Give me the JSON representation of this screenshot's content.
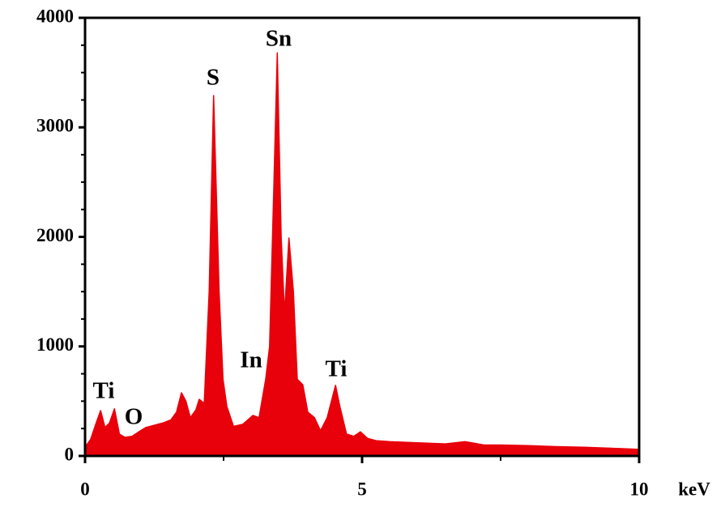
{
  "chart_data": {
    "type": "area",
    "x_label": "keV",
    "x": [
      0,
      0.1,
      0.2,
      0.28,
      0.36,
      0.44,
      0.53,
      0.62,
      0.72,
      0.85,
      1.0,
      1.1,
      1.25,
      1.4,
      1.55,
      1.65,
      1.74,
      1.82,
      1.9,
      2.0,
      2.06,
      2.15,
      2.24,
      2.32,
      2.42,
      2.49,
      2.56,
      2.68,
      2.85,
      3.03,
      3.14,
      3.26,
      3.33,
      3.41,
      3.47,
      3.54,
      3.6,
      3.68,
      3.76,
      3.83,
      3.93,
      4.02,
      4.14,
      4.25,
      4.37,
      4.52,
      4.6,
      4.72,
      4.85,
      4.97,
      5.1,
      5.25,
      5.5,
      6.0,
      6.5,
      6.86,
      7.2,
      7.5,
      8.0,
      8.5,
      9.0,
      9.5,
      10.0
    ],
    "values": [
      80,
      150,
      300,
      414,
      260,
      300,
      430,
      200,
      170,
      180,
      230,
      260,
      280,
      300,
      330,
      400,
      577,
      500,
      350,
      420,
      517,
      480,
      1500,
      3290,
      1500,
      700,
      450,
      270,
      290,
      370,
      350,
      700,
      1000,
      2500,
      3680,
      2000,
      1300,
      1990,
      1500,
      700,
      650,
      400,
      350,
      230,
      350,
      645,
      450,
      200,
      180,
      220,
      160,
      140,
      130,
      120,
      110,
      130,
      100,
      100,
      95,
      85,
      80,
      70,
      60
    ],
    "color": "#e8000b",
    "xlim": [
      0,
      10
    ],
    "xticks": [
      0,
      5,
      10
    ],
    "ylim": [
      0,
      4000
    ],
    "yticks": [
      0,
      1000,
      2000,
      3000,
      4000
    ],
    "annotations": [
      "Ti",
      "O",
      "S",
      "Sn",
      "In",
      "Ti"
    ]
  }
}
